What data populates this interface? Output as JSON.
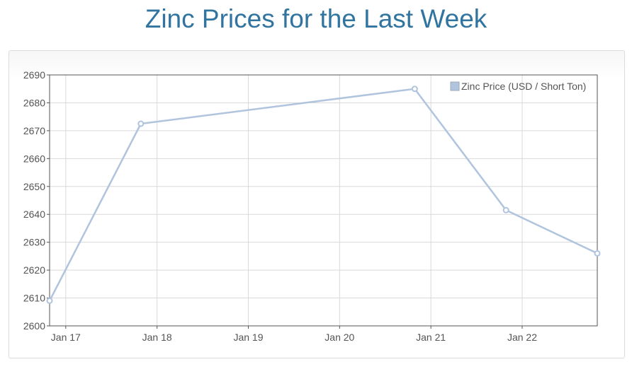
{
  "page": {
    "title": "Zinc Prices for the Last Week"
  },
  "colors": {
    "title": "#31749f",
    "series": "#b0c4de",
    "axis": "#545454",
    "grid": "#d9d9d9"
  },
  "chart_data": {
    "type": "line",
    "title": "Zinc Prices for the Last Week",
    "xlabel": "",
    "ylabel": "",
    "xlim": [
      "Jan 16 19:45",
      "Jan 22 19:45"
    ],
    "ylim": [
      2600,
      2690
    ],
    "x_ticks": [
      "Jan 17",
      "Jan 18",
      "Jan 19",
      "Jan 20",
      "Jan 21",
      "Jan 22"
    ],
    "y_ticks": [
      2600,
      2610,
      2620,
      2630,
      2640,
      2650,
      2660,
      2670,
      2680,
      2690
    ],
    "grid": true,
    "legend_position": "top-right",
    "series": [
      {
        "name": "Zinc Price (USD / Short Ton)",
        "points": [
          {
            "x": "Jan 16 19:45",
            "y": 2609
          },
          {
            "x": "Jan 17 19:45",
            "y": 2672.5
          },
          {
            "x": "Jan 20 19:45",
            "y": 2685
          },
          {
            "x": "Jan 21 19:45",
            "y": 2641.5
          },
          {
            "x": "Jan 22 19:45",
            "y": 2626
          }
        ]
      }
    ]
  }
}
